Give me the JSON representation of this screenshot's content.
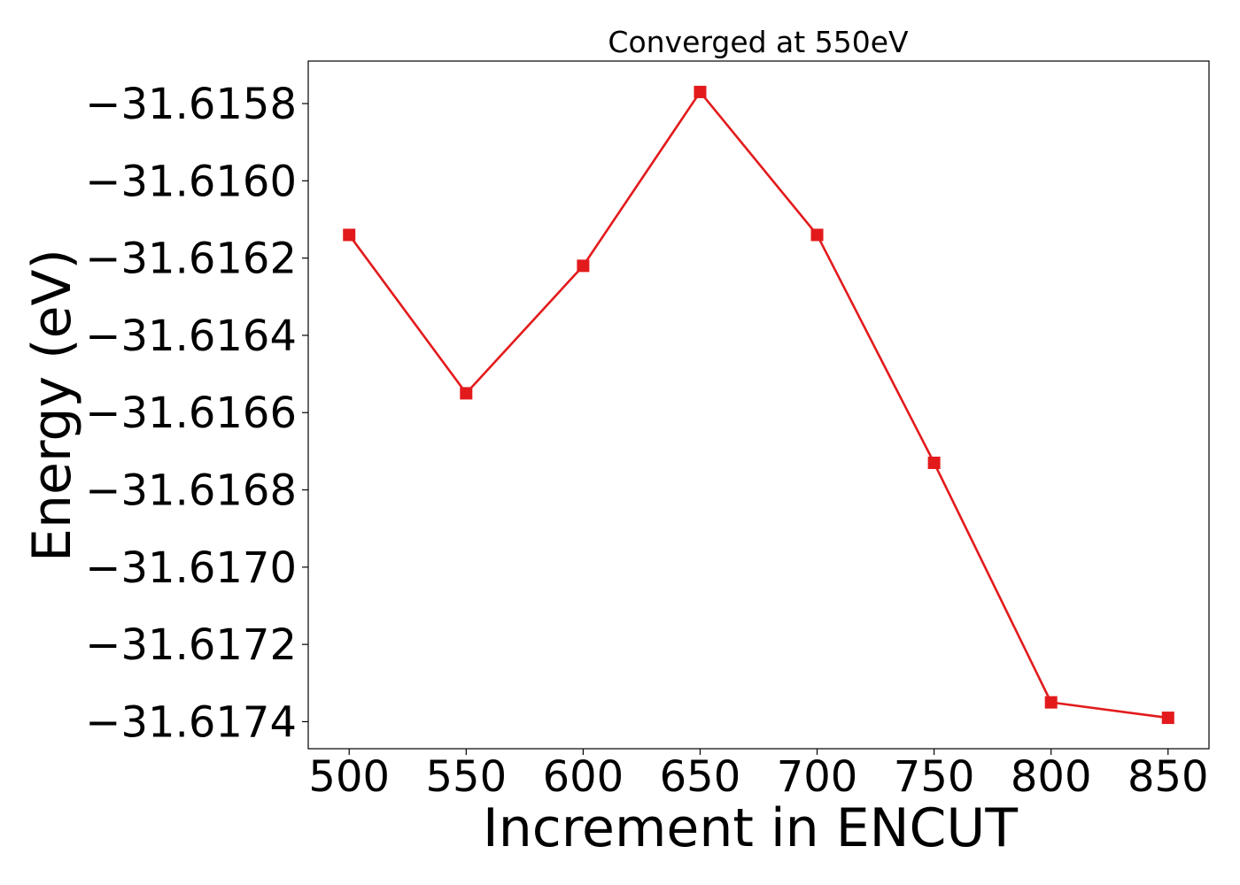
{
  "chart_data": {
    "type": "line",
    "title": "Converged at 550eV",
    "xlabel": "Increment in ENCUT",
    "ylabel": "Energy (eV)",
    "x": [
      500,
      550,
      600,
      650,
      700,
      750,
      800,
      850
    ],
    "series": [
      {
        "values": [
          -31.61614,
          -31.61655,
          -31.61622,
          -31.61577,
          -31.61614,
          -31.61673,
          -31.61735,
          -31.61739
        ],
        "color": "#e31a1c",
        "marker": "square"
      }
    ],
    "xticks": [
      500,
      550,
      600,
      650,
      700,
      750,
      800,
      850
    ],
    "xtick_labels": [
      "500",
      "550",
      "600",
      "650",
      "700",
      "750",
      "800",
      "850"
    ],
    "yticks": [
      -31.6158,
      -31.616,
      -31.6162,
      -31.6164,
      -31.6166,
      -31.6168,
      -31.617,
      -31.6172,
      -31.6174
    ],
    "ytick_labels": [
      "−31.6158",
      "−31.6160",
      "−31.6162",
      "−31.6164",
      "−31.6166",
      "−31.6168",
      "−31.6170",
      "−31.6172",
      "−31.6174"
    ],
    "xlim": [
      482.5,
      867.5
    ],
    "ylim": [
      -31.61747,
      -31.61569
    ],
    "grid": false,
    "legend": false
  }
}
